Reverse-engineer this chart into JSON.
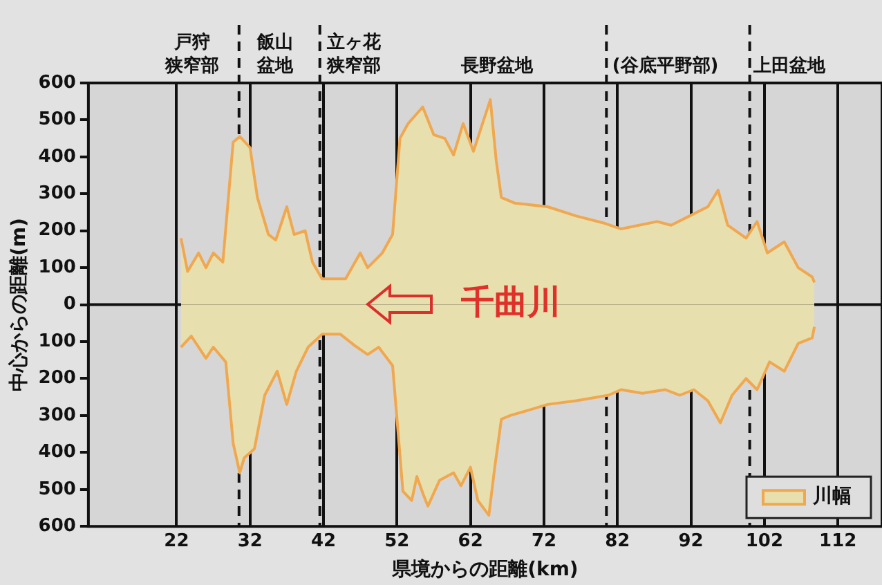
{
  "chart_data": {
    "type": "area",
    "xlabel": "県境からの距離(km)",
    "ylabel": "中心からの距離(m)",
    "xlim": [
      10,
      118
    ],
    "xticks": [
      22,
      32,
      42,
      52,
      62,
      72,
      82,
      92,
      102,
      112
    ],
    "ylim": [
      -600,
      600
    ],
    "yticks": [
      {
        "value": -600,
        "label": "600"
      },
      {
        "value": -500,
        "label": "500"
      },
      {
        "value": -400,
        "label": "400"
      },
      {
        "value": -300,
        "label": "300"
      },
      {
        "value": -200,
        "label": "200"
      },
      {
        "value": -100,
        "label": "100"
      },
      0,
      100,
      200,
      300,
      400,
      500,
      600
    ],
    "grid": "x",
    "legend": "bottom right",
    "series": [
      {
        "name": "川幅",
        "color": "#f0a850",
        "x": [
          22.6,
          23.5,
          25,
          26,
          27,
          28.3,
          29.7,
          30.6,
          32,
          33,
          34.5,
          35.5,
          37,
          38,
          39.5,
          40.5,
          41.8,
          45,
          47,
          48,
          50,
          51.4,
          52.4,
          53.5,
          55.5,
          57,
          58.5,
          59.7,
          61,
          62.4,
          64.7,
          65.5,
          66.2,
          68,
          72.5,
          76.4,
          80.3,
          82.5,
          87.4,
          89.3,
          91.8,
          94.3,
          95.7,
          97,
          99.5,
          101,
          102.4,
          104.7,
          106.6,
          108.5,
          108.8
        ],
        "values": [
          180,
          90,
          140,
          100,
          140,
          115,
          440,
          455,
          425,
          290,
          190,
          175,
          265,
          190,
          200,
          115,
          70,
          70,
          140,
          100,
          140,
          190,
          450,
          490,
          535,
          460,
          450,
          405,
          490,
          415,
          555,
          390,
          290,
          275,
          265,
          240,
          220,
          205,
          225,
          215,
          240,
          265,
          310,
          215,
          180,
          225,
          140,
          170,
          100,
          75,
          60
        ]
      },
      {
        "color": "#f0a850",
        "x": [
          22.6,
          24,
          26,
          27,
          28.7,
          29.7,
          30.6,
          31.2,
          32.6,
          34,
          35.7,
          37,
          38.3,
          39.9,
          41.8,
          44.3,
          46.2,
          48,
          49.5,
          51.4,
          52,
          52.8,
          54,
          54.7,
          55.6,
          56.2,
          57.8,
          59.7,
          60.7,
          62,
          63,
          64.5,
          65.3,
          66.2,
          67.4,
          70,
          72.5,
          76.4,
          80.8,
          82.5,
          85.4,
          88.5,
          90.5,
          92.4,
          94.3,
          96,
          97.6,
          99.5,
          101,
          102.7,
          104.7,
          106.6,
          108.5,
          108.8
        ],
        "values": [
          -115,
          -85,
          -145,
          -115,
          -155,
          -375,
          -455,
          -415,
          -390,
          -245,
          -180,
          -270,
          -180,
          -115,
          -80,
          -80,
          -110,
          -135,
          -115,
          -165,
          -310,
          -505,
          -530,
          -465,
          -515,
          -545,
          -475,
          -455,
          -490,
          -440,
          -530,
          -570,
          -440,
          -310,
          -300,
          -285,
          -270,
          -260,
          -245,
          -230,
          -240,
          -230,
          -245,
          -230,
          -260,
          -320,
          -245,
          -200,
          -230,
          -155,
          -180,
          -105,
          -90,
          -60
        ]
      }
    ],
    "ref_lines": [
      {
        "axis": "y",
        "value": 0,
        "line_style": "solid"
      },
      {
        "axis": "x",
        "value": 30.5,
        "line_style": "dashed"
      },
      {
        "axis": "x",
        "value": 41.5,
        "line_style": "dashed"
      },
      {
        "axis": "x",
        "value": 80.5,
        "line_style": "dashed"
      },
      {
        "axis": "x",
        "value": 100,
        "line_style": "dashed"
      }
    ],
    "annotations": [
      "千曲川",
      "戸狩狭窄部",
      "飯山盆地",
      "立ヶ花狭窄部",
      "長野盆地",
      "(谷底平野部)",
      "上田盆地"
    ]
  }
}
